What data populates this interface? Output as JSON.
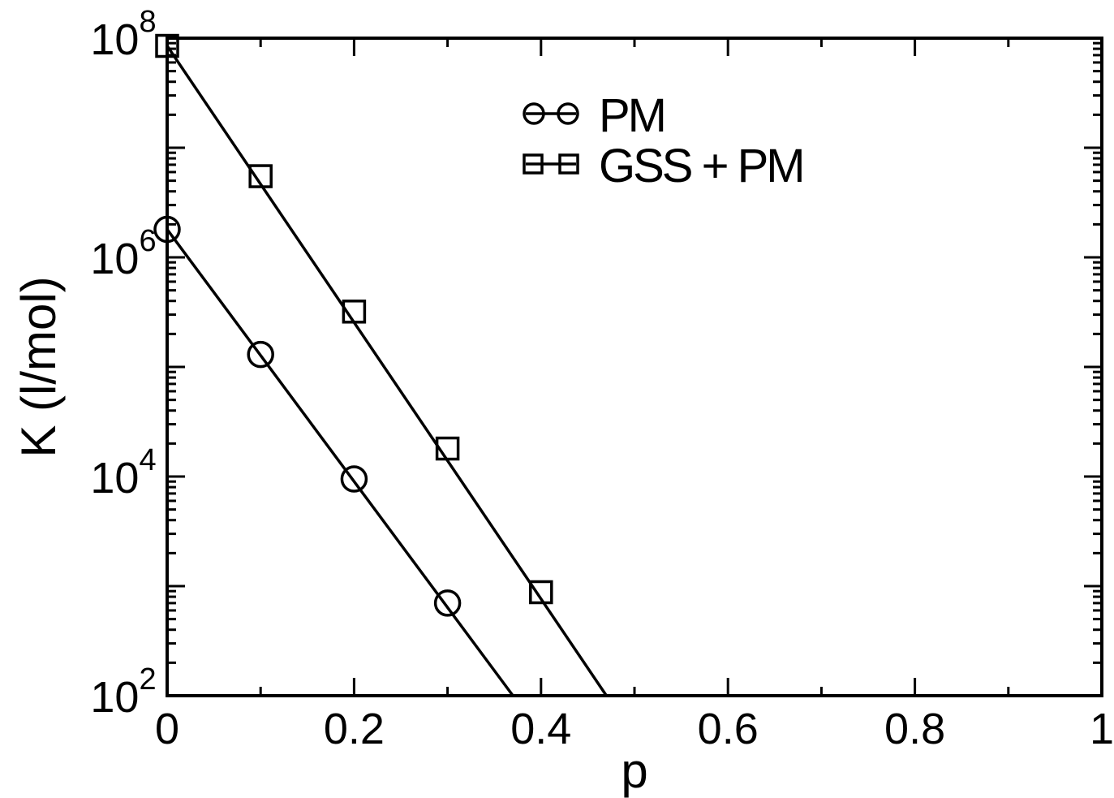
{
  "chart_data": {
    "type": "line",
    "title": "",
    "xlabel": "p",
    "ylabel": "K (l/mol)",
    "xlim": [
      0,
      1
    ],
    "ylim": [
      100,
      100000000
    ],
    "yscale": "log",
    "grid": false,
    "legend": "top-center",
    "x_ticks": [
      {
        "value": 0,
        "label": "0"
      },
      {
        "value": 0.2,
        "label": "0.2"
      },
      {
        "value": 0.4,
        "label": "0.4"
      },
      {
        "value": 0.6,
        "label": "0.6"
      },
      {
        "value": 0.8,
        "label": "0.8"
      },
      {
        "value": 1,
        "label": "1"
      }
    ],
    "y_ticks": [
      {
        "value": 100,
        "base": "10",
        "exp": "2"
      },
      {
        "value": 10000,
        "base": "10",
        "exp": "4"
      },
      {
        "value": 1000000,
        "base": "10",
        "exp": "6"
      },
      {
        "value": 100000000,
        "base": "10",
        "exp": "8"
      }
    ],
    "series": [
      {
        "name": "PM",
        "marker": "circle",
        "color": "#000000",
        "points": [
          {
            "x": 0,
            "y": 1800000
          },
          {
            "x": 0.1,
            "y": 130000
          },
          {
            "x": 0.2,
            "y": 9500
          },
          {
            "x": 0.3,
            "y": 700
          }
        ],
        "fit_line": [
          {
            "x": 0,
            "y": 1800000
          },
          {
            "x": 0.37,
            "y": 100
          }
        ]
      },
      {
        "name": "GSS + PM",
        "marker": "square",
        "color": "#000000",
        "points": [
          {
            "x": 0,
            "y": 85000000
          },
          {
            "x": 0.1,
            "y": 5500000
          },
          {
            "x": 0.2,
            "y": 320000
          },
          {
            "x": 0.3,
            "y": 18000
          },
          {
            "x": 0.4,
            "y": 880
          }
        ],
        "fit_line": [
          {
            "x": 0,
            "y": 85000000
          },
          {
            "x": 0.47,
            "y": 100
          }
        ]
      }
    ]
  }
}
